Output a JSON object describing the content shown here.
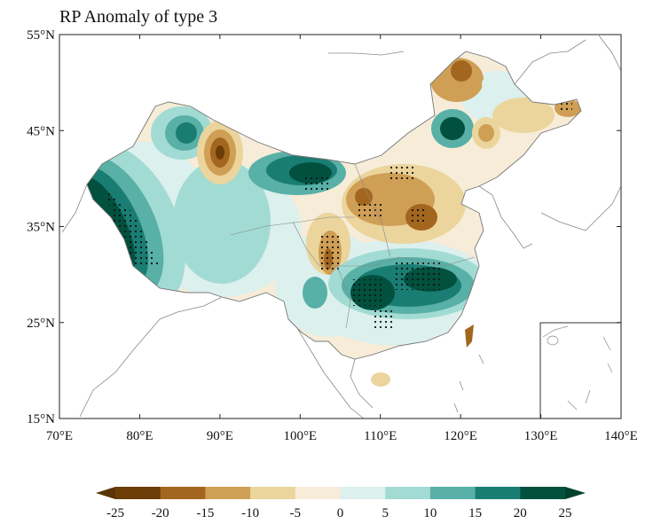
{
  "title": "RP Anomaly of type 3",
  "map": {
    "lon_ticks": [
      "70°E",
      "80°E",
      "90°E",
      "100°E",
      "110°E",
      "120°E",
      "130°E",
      "140°E"
    ],
    "lat_ticks": [
      "55°N",
      "45°N",
      "35°N",
      "25°N",
      "15°N"
    ],
    "extent": {
      "lon": [
        70,
        140
      ],
      "lat": [
        15,
        55
      ]
    },
    "stippling": "significant areas marked with dots",
    "inset": "South China Sea"
  },
  "colorbar": {
    "ticks": [
      "-25",
      "-20",
      "-15",
      "-10",
      "-5",
      "0",
      "5",
      "10",
      "15",
      "20",
      "25"
    ],
    "colors": [
      "#6d3d08",
      "#a3661e",
      "#cf9f55",
      "#ebd59d",
      "#f6ecd8",
      "#dcf0ed",
      "#a2dbd3",
      "#58b0a7",
      "#1a7d73",
      "#02513f"
    ],
    "under_color": "#5a3407",
    "over_color": "#00412f",
    "extend": "both"
  }
}
